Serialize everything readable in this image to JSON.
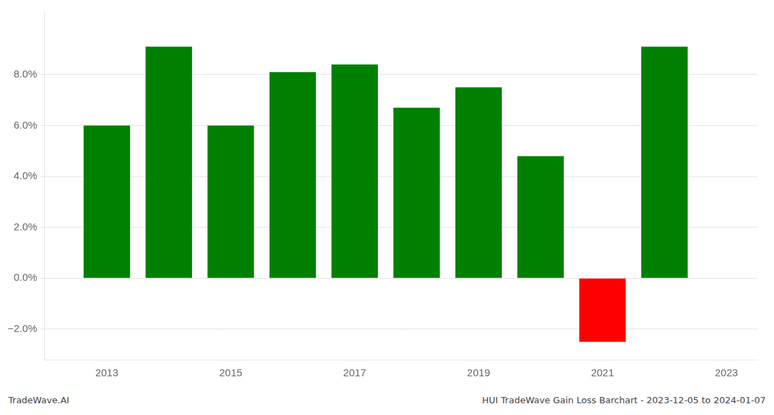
{
  "chart_data": {
    "type": "bar",
    "x": [
      2013,
      2014,
      2015,
      2016,
      2017,
      2018,
      2019,
      2020,
      2021,
      2022
    ],
    "values": [
      0.06,
      0.091,
      0.06,
      0.081,
      0.084,
      0.067,
      0.075,
      0.048,
      -0.025,
      0.091
    ],
    "colors": [
      "#008000",
      "#008000",
      "#008000",
      "#008000",
      "#008000",
      "#008000",
      "#008000",
      "#008000",
      "#ff0000",
      "#008000"
    ],
    "xlim": [
      2012.0,
      2023.5
    ],
    "xticks": [
      2013,
      2015,
      2017,
      2019,
      2021,
      2023
    ],
    "ylim": [
      -0.032,
      0.105
    ],
    "yticks": [
      {
        "value": -0.02,
        "label": "−2.0%"
      },
      {
        "value": 0.0,
        "label": "0.0%"
      },
      {
        "value": 0.02,
        "label": "2.0%"
      },
      {
        "value": 0.04,
        "label": "4.0%"
      },
      {
        "value": 0.06,
        "label": "6.0%"
      },
      {
        "value": 0.08,
        "label": "8.0%"
      }
    ],
    "grid": true,
    "annotations": [
      "TradeWave.AI",
      "HUI TradeWave Gain Loss Barchart - 2023-12-05 to 2024-01-07"
    ]
  }
}
